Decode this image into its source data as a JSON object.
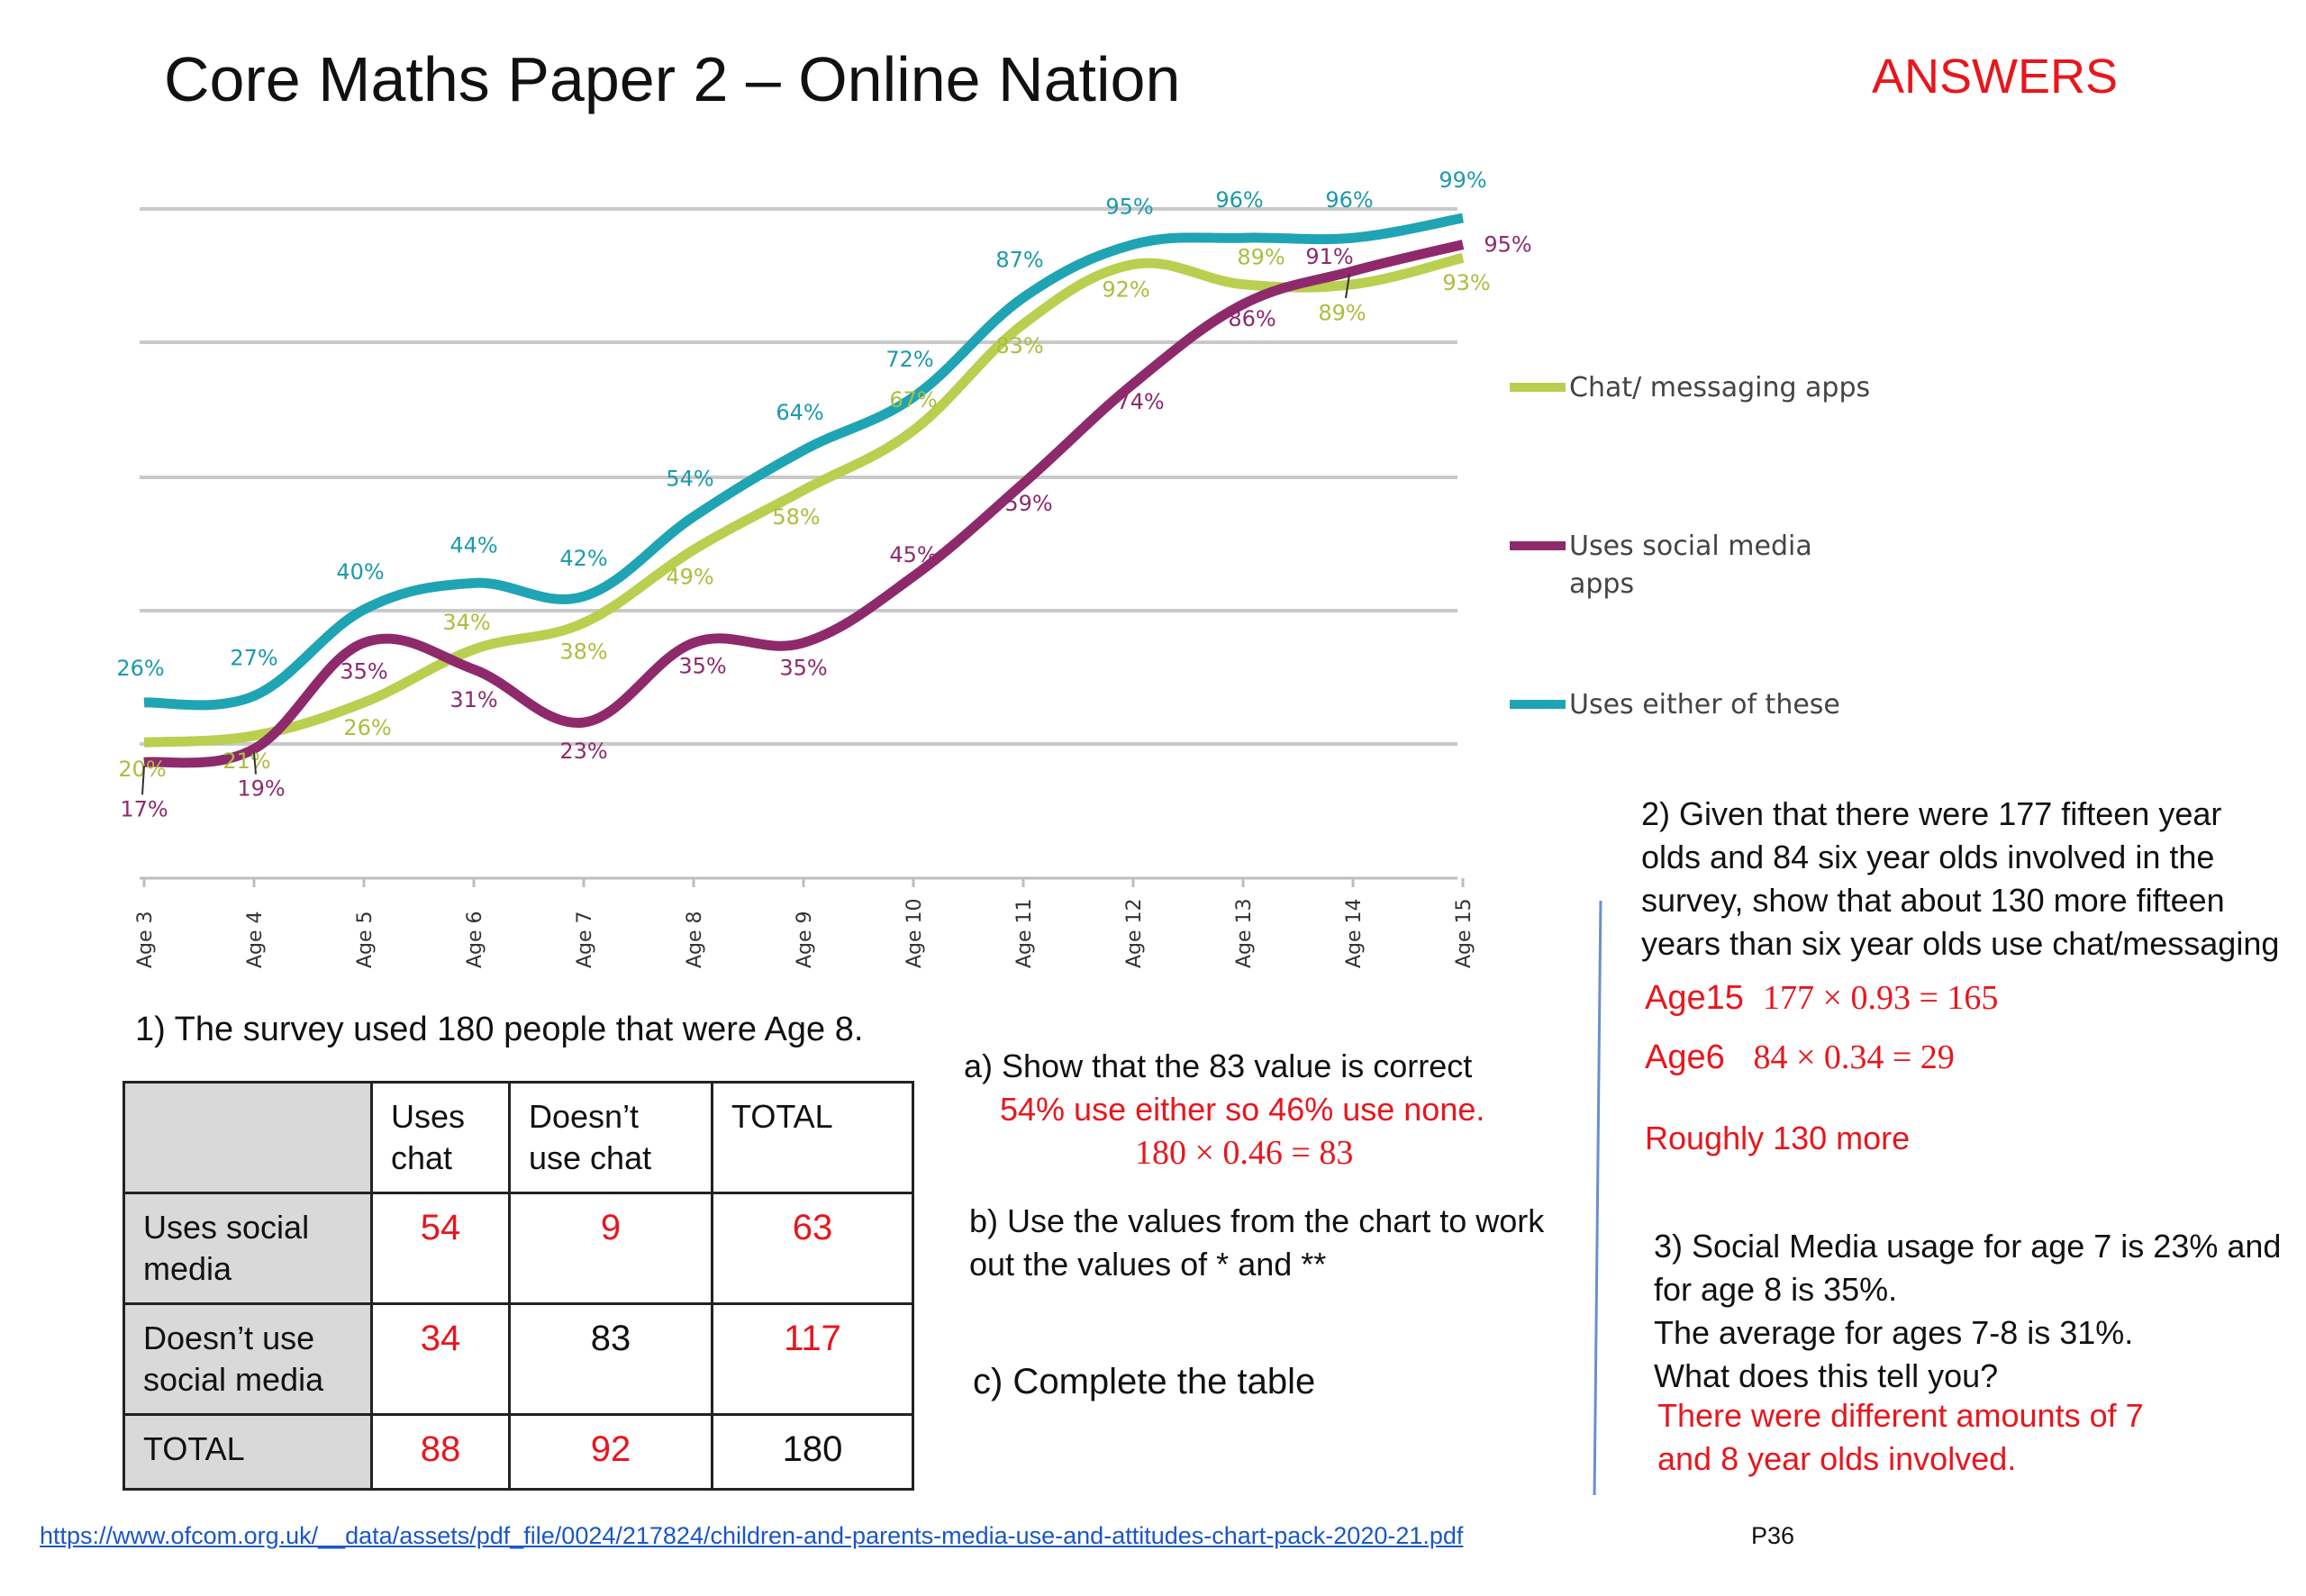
{
  "title": "Core Maths Paper 2 – Online Nation",
  "answers_label": "ANSWERS",
  "chart_data": {
    "type": "line",
    "categories": [
      "Age 3",
      "Age 4",
      "Age 5",
      "Age 6",
      "Age 7",
      "Age 8",
      "Age 9",
      "Age 10",
      "Age 11",
      "Age 12",
      "Age 13",
      "Age 14",
      "Age 15"
    ],
    "series": [
      {
        "name": "Chat/ messaging apps",
        "color": "#b9cf4f",
        "values": [
          20,
          21,
          26,
          34,
          38,
          49,
          58,
          67,
          83,
          92,
          89,
          89,
          93
        ],
        "labels": [
          "20%",
          "21%",
          "26%",
          "34%",
          "38%",
          "49%",
          "58%",
          "67%",
          "83%",
          "92%",
          "89%",
          "89%",
          "93%"
        ]
      },
      {
        "name": "Uses social media apps",
        "color": "#8e2a6b",
        "values": [
          17,
          19,
          35,
          31,
          23,
          35,
          35,
          45,
          59,
          74,
          86,
          91,
          95
        ],
        "labels": [
          "17%",
          "19%",
          "35%",
          "31%",
          "23%",
          "35%",
          "35%",
          "45%",
          "59%",
          "74%",
          "86%",
          "91%",
          "95%"
        ]
      },
      {
        "name": "Uses either of these",
        "color": "#1fa4b4",
        "values": [
          26,
          27,
          40,
          44,
          42,
          54,
          64,
          72,
          87,
          95,
          96,
          96,
          99
        ],
        "labels": [
          "26%",
          "27%",
          "40%",
          "44%",
          "42%",
          "54%",
          "64%",
          "72%",
          "87%",
          "95%",
          "96%",
          "96%",
          "99%"
        ]
      }
    ],
    "legend": [
      "Chat/ messaging apps",
      "Uses social media",
      "apps",
      "Uses either of these"
    ],
    "ylim": [
      0,
      100
    ],
    "grid": true,
    "legend_position": "right"
  },
  "q1": {
    "text": "1) The survey used 180 people that were Age 8.",
    "table": {
      "header": [
        "",
        "Uses chat",
        "Doesn’t use chat",
        "TOTAL"
      ],
      "header_lines": [
        [
          "",
          ""
        ],
        [
          "Uses",
          "chat"
        ],
        [
          "Doesn’t",
          "use chat"
        ],
        [
          "TOTAL",
          ""
        ]
      ],
      "rows": [
        {
          "label_lines": [
            "Uses social",
            "media"
          ],
          "cells": [
            "54",
            "9",
            "63"
          ],
          "red": [
            true,
            true,
            true
          ]
        },
        {
          "label_lines": [
            "Doesn’t use",
            "social media"
          ],
          "cells": [
            "34",
            "83",
            "117"
          ],
          "red": [
            true,
            false,
            true
          ]
        },
        {
          "label_lines": [
            "TOTAL",
            ""
          ],
          "cells": [
            "88",
            "92",
            "180"
          ],
          "red": [
            true,
            true,
            false
          ]
        }
      ]
    },
    "qa": "a) Show that the 83 value is correct",
    "qa_ans1": "54% use either so 46% use none.",
    "qa_ans2": "180 × 0.46 = 83",
    "qb_line1": "b) Use the values from the chart to work",
    "qb_line2": "out the values of * and **",
    "qc": "c) Complete the table"
  },
  "q2": {
    "lines": [
      "2) Given that there were 177 fifteen year",
      "olds and 84 six year olds involved in the",
      "survey, show that about 130 more fifteen",
      "years than six year olds use chat/messaging"
    ],
    "a15_label": "Age15",
    "a15_calc": "177 × 0.93 = 165",
    "a6_label": "Age6",
    "a6_calc": "84 × 0.34 = 29",
    "answer": "Roughly 130 more"
  },
  "q3": {
    "lines": [
      "3) Social Media usage for age 7 is 23% and",
      "for age 8 is 35%.",
      "The average for ages 7-8 is 31%.",
      "What does this tell you?"
    ],
    "answer_lines": [
      "There were different amounts of 7",
      "and 8 year olds involved."
    ]
  },
  "source_url": "https://www.ofcom.org.uk/__data/assets/pdf_file/0024/217824/children-and-parents-media-use-and-attitudes-chart-pack-2020-21.pdf",
  "page_label": "P36"
}
